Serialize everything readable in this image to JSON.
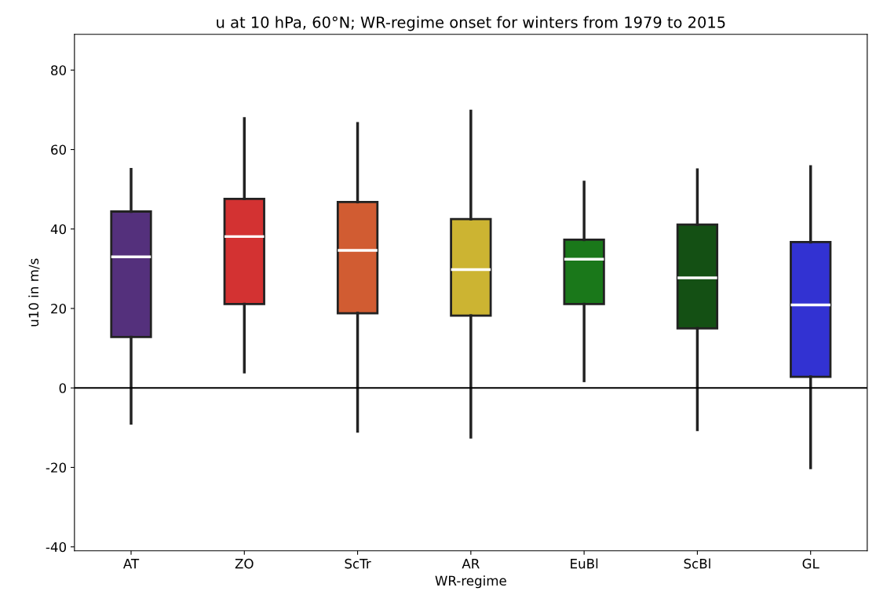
{
  "chart_data": {
    "type": "box",
    "title": "u at 10 hPa, 60°N; WR-regime onset for winters from 1979 to 2015",
    "xlabel": "WR-regime",
    "ylabel": "u10 in m/s",
    "categories": [
      "AT",
      "ZO",
      "ScTr",
      "AR",
      "EuBl",
      "ScBl",
      "GL"
    ],
    "colors": [
      "#54307c",
      "#d33232",
      "#d15c32",
      "#ccb432",
      "#1a781a",
      "#145014",
      "#3232d2"
    ],
    "boxes": [
      {
        "low": -8.9,
        "q1": 12.8,
        "median": 33,
        "q3": 44.4,
        "high": 55
      },
      {
        "low": 4,
        "q1": 21.1,
        "median": 38.1,
        "q3": 47.6,
        "high": 67.8
      },
      {
        "low": -10.9,
        "q1": 18.8,
        "median": 34.6,
        "q3": 46.8,
        "high": 66.6
      },
      {
        "low": -12.4,
        "q1": 18.2,
        "median": 29.8,
        "q3": 42.5,
        "high": 69.7
      },
      {
        "low": 1.8,
        "q1": 21.1,
        "median": 32.4,
        "q3": 37.3,
        "high": 51.8
      },
      {
        "low": -10.5,
        "q1": 15,
        "median": 27.7,
        "q3": 41.1,
        "high": 54.9
      },
      {
        "low": -20.1,
        "q1": 2.8,
        "median": 20.9,
        "q3": 36.7,
        "high": 55.7
      }
    ],
    "ylim": [
      -41,
      89
    ],
    "yticks": [
      -40,
      -20,
      0,
      20,
      40,
      60,
      80
    ],
    "ref_lines": [
      {
        "axis": "y",
        "value": 0,
        "color": "#000000"
      }
    ],
    "grid": false
  }
}
